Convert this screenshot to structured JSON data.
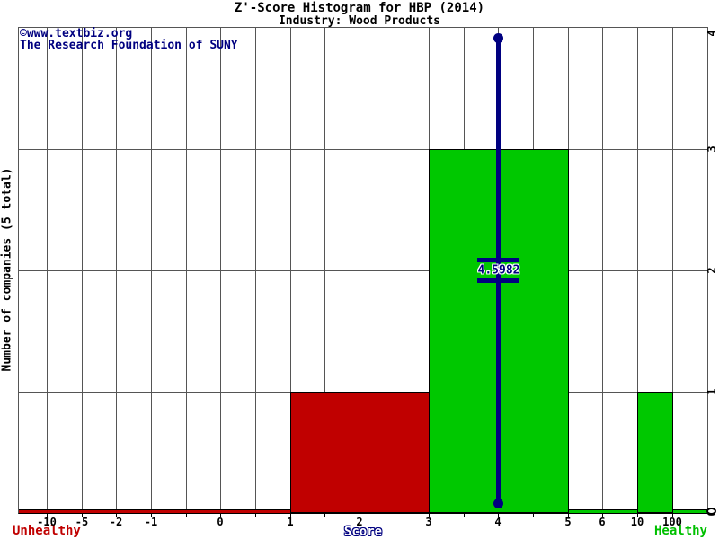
{
  "title": "Z'-Score Histogram for HBP (2014)",
  "subtitle": "Industry: Wood Products",
  "watermark": {
    "line1": "©www.textbiz.org",
    "line2": "The Research Foundation of SUNY"
  },
  "axes": {
    "y_label": "Number of companies (5 total)",
    "x_label": "Score",
    "left_caption": "Unhealthy",
    "right_caption": "Healthy"
  },
  "marker": {
    "label": "4.5982"
  },
  "colors": {
    "unhealthy_red": "#c00000",
    "healthy_green": "#00c800",
    "healthy_text_green": "#00c000",
    "marker_navy": "#000080",
    "grid_gray": "#555555"
  },
  "chart_data": {
    "type": "bar",
    "title": "Z'-Score Histogram for HBP (2014)",
    "subtitle": "Industry: Wood Products",
    "xlabel": "Score",
    "ylabel": "Number of companies (5 total)",
    "total_companies": 5,
    "ylim": [
      0,
      4
    ],
    "y_ticks": [
      0,
      1,
      2,
      3,
      4
    ],
    "grid": true,
    "legend": null,
    "x_tick_labels": [
      "-10",
      "-5",
      "-2",
      "-1",
      "0",
      "1",
      "2",
      "3",
      "4",
      "5",
      "6",
      "10",
      "100"
    ],
    "x_slots": [
      "-10",
      "-5",
      "-2",
      "-1",
      "",
      "0",
      "",
      "1",
      "",
      "2",
      "",
      "3",
      "",
      "4",
      "",
      "5",
      "6",
      "10",
      "100"
    ],
    "bars": [
      {
        "x_from": "1",
        "x_to": "3",
        "count": 1,
        "status": "unhealthy",
        "color": "#c00000"
      },
      {
        "x_from": "3",
        "x_to": "5",
        "count": 3,
        "status": "healthy",
        "color": "#00c800"
      },
      {
        "x_from": "10",
        "x_to": "100",
        "count": 1,
        "status": "healthy",
        "color": "#00c800"
      }
    ],
    "zero_line_segments": [
      {
        "x_from": "-10",
        "x_to": "1",
        "color": "#c00000",
        "extends_to_plot_edge": "left"
      },
      {
        "x_from": "5",
        "x_to": "100",
        "color": "#00c800",
        "extends_to_plot_edge": "right"
      }
    ],
    "company_score": {
      "value": 4.5982,
      "line_x": "4",
      "label_y": 2
    }
  }
}
